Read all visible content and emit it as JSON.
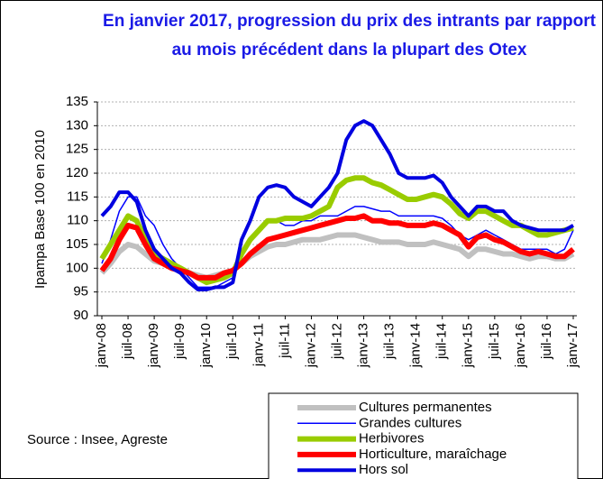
{
  "chart_data": {
    "type": "line",
    "title": "En janvier 2017, progression du prix des intrants par rapport au mois précédent dans la plupart des Otex",
    "y_label": "Ipampa Base 100 en  2010",
    "source": "Source : Insee, Agreste",
    "categories": [
      "janv-08",
      null,
      null,
      "juil-08",
      null,
      null,
      "janv-09",
      null,
      null,
      "juil-09",
      null,
      null,
      "janv-10",
      null,
      null,
      "juil-10",
      null,
      null,
      "janv-11",
      null,
      null,
      "juil-11",
      null,
      null,
      "janv-12",
      null,
      null,
      "juil-12",
      null,
      null,
      "janv-13",
      null,
      null,
      "juil-13",
      null,
      null,
      "janv-14",
      null,
      null,
      "juil-14",
      null,
      null,
      "janv-15",
      null,
      null,
      "juil-15",
      null,
      null,
      "janv-16",
      null,
      null,
      "juil-16",
      null,
      null,
      "janv-17"
    ],
    "ylim": [
      90,
      135
    ],
    "yticks": [
      90,
      95,
      100,
      105,
      110,
      115,
      120,
      125,
      130,
      135
    ],
    "grid": true,
    "series": [
      {
        "name": "Cultures permanentes",
        "color": "#c0c0c0",
        "line_width": 6,
        "values": [
          99,
          101,
          103.5,
          105,
          104.5,
          103,
          101.5,
          101,
          100.5,
          100,
          99,
          98.5,
          98,
          98.5,
          99,
          99.5,
          101,
          102.5,
          103.5,
          104.5,
          105,
          105,
          105.5,
          106,
          106,
          106,
          106.5,
          107,
          107,
          107,
          106.5,
          106,
          105.5,
          105.5,
          105.5,
          105,
          105,
          105,
          105.5,
          105,
          104.5,
          104,
          102.5,
          104,
          104,
          103.5,
          103,
          103,
          102.5,
          102,
          102.5,
          102.5,
          102,
          102,
          103
        ]
      },
      {
        "name": "Grandes cultures",
        "color": "#0000ff",
        "line_width": 1.5,
        "values": [
          101,
          106,
          112,
          115,
          115,
          111,
          109,
          105,
          102,
          100,
          98,
          96,
          96,
          96,
          97,
          98,
          103,
          106,
          108,
          110,
          110,
          109,
          109,
          110,
          110,
          111,
          111,
          111,
          112,
          113,
          113,
          112.5,
          112,
          112,
          111,
          111,
          111,
          111,
          111,
          110.5,
          109,
          107,
          106,
          107,
          108,
          107,
          106,
          105,
          104,
          104,
          104,
          104,
          103,
          104,
          108
        ]
      },
      {
        "name": "Herbivores",
        "color": "#99cc00",
        "line_width": 6,
        "values": [
          102,
          105,
          108,
          111,
          110,
          106,
          103,
          102,
          101,
          100,
          99,
          98,
          97,
          97.5,
          98,
          99,
          103,
          106,
          108,
          110,
          110,
          110.5,
          110.5,
          110.5,
          111,
          112,
          113,
          117,
          118.5,
          119,
          119,
          118,
          117.5,
          116.5,
          115.5,
          114.5,
          114.5,
          115,
          115.5,
          115,
          113.5,
          111.5,
          110.5,
          112,
          112,
          111,
          110,
          109,
          109,
          108,
          107,
          107,
          107.5,
          108,
          108.5
        ]
      },
      {
        "name": "Horticulture, maraîchage",
        "color": "#ff0000",
        "line_width": 6,
        "values": [
          99.5,
          102,
          106,
          109,
          108.5,
          105,
          102,
          101,
          100,
          99.5,
          99,
          98,
          98,
          98,
          99,
          99.5,
          101,
          103,
          104.5,
          106,
          106.5,
          107,
          107.5,
          108,
          108.5,
          109,
          109.5,
          110,
          110.5,
          110.5,
          111,
          110,
          110,
          109.5,
          109.5,
          109,
          109,
          109,
          109.5,
          109,
          108,
          107,
          104.5,
          106.5,
          107,
          106,
          105.5,
          104.5,
          103.5,
          103,
          103.5,
          103,
          102.5,
          102.5,
          104
        ]
      },
      {
        "name": "Hors sol",
        "color": "#0000e0",
        "line_width": 4,
        "values": [
          111,
          113,
          116,
          116,
          114,
          108,
          104,
          102,
          100,
          99,
          97,
          95.5,
          95.5,
          96,
          96,
          97,
          106,
          110,
          115,
          117,
          117.5,
          117,
          115,
          114,
          113,
          115,
          117,
          120,
          127,
          130,
          131,
          130,
          127,
          124,
          120,
          119,
          119,
          119,
          119.5,
          118,
          115,
          113,
          111,
          113,
          113,
          112,
          112,
          110,
          109,
          108.5,
          108,
          108,
          108,
          108,
          109
        ]
      }
    ]
  }
}
